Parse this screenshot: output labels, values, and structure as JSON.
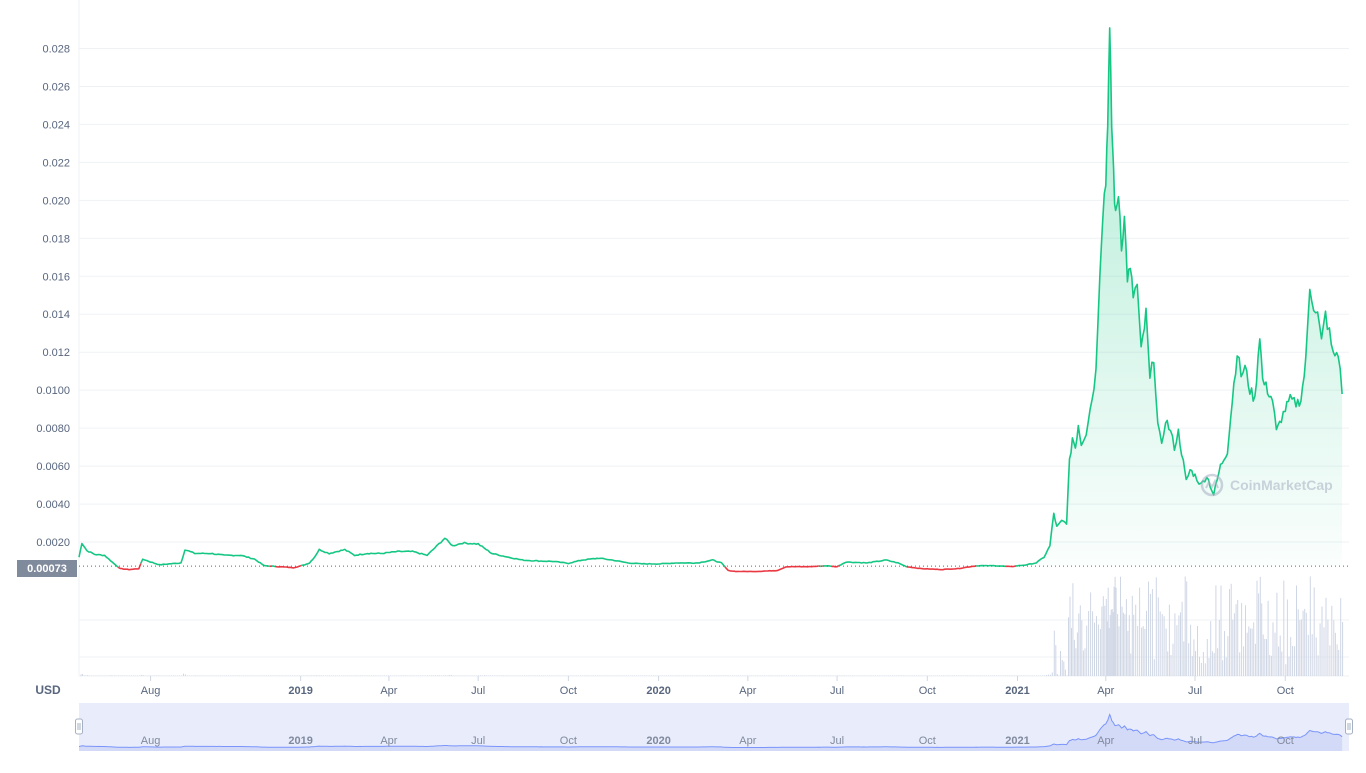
{
  "currency_label": "USD",
  "watermark": "CoinMarketCap",
  "current_price_label": "0.00073",
  "colors": {
    "up": "#16c784",
    "down": "#ea3943",
    "volume": "#cfd6e4",
    "navigator_fill": "#e8ecfb",
    "navigator_line": "#3861fb",
    "reference_line": "#58667e",
    "price_tag_bg": "#808a9d"
  },
  "chart_data": {
    "type": "line",
    "title": "",
    "xlabel": "",
    "ylabel": "USD",
    "grid": true,
    "y_ticks": [
      "0.0020",
      "0.0040",
      "0.0060",
      "0.0080",
      "0.0100",
      "0.012",
      "0.014",
      "0.016",
      "0.018",
      "0.020",
      "0.022",
      "0.024",
      "0.026",
      "0.028"
    ],
    "y_tick_values": [
      0.002,
      0.004,
      0.006,
      0.008,
      0.01,
      0.012,
      0.014,
      0.016,
      0.018,
      0.02,
      0.022,
      0.024,
      0.026,
      0.028
    ],
    "ylim": [
      0.0,
      0.0295
    ],
    "xlim": [
      "2018-05-20",
      "2021-12-05"
    ],
    "x_ticks": [
      {
        "label": "Aug",
        "date": "2018-08-01",
        "bold": false
      },
      {
        "label": "2019",
        "date": "2019-01-01",
        "bold": true
      },
      {
        "label": "Apr",
        "date": "2019-04-01",
        "bold": false
      },
      {
        "label": "Jul",
        "date": "2019-07-01",
        "bold": false
      },
      {
        "label": "Oct",
        "date": "2019-10-01",
        "bold": false
      },
      {
        "label": "2020",
        "date": "2020-01-01",
        "bold": true
      },
      {
        "label": "Apr",
        "date": "2020-04-01",
        "bold": false
      },
      {
        "label": "Jul",
        "date": "2020-07-01",
        "bold": false
      },
      {
        "label": "Oct",
        "date": "2020-10-01",
        "bold": false
      },
      {
        "label": "2021",
        "date": "2021-01-01",
        "bold": true
      },
      {
        "label": "Apr",
        "date": "2021-04-01",
        "bold": false
      },
      {
        "label": "Jul",
        "date": "2021-07-01",
        "bold": false
      },
      {
        "label": "Oct",
        "date": "2021-10-01",
        "bold": false
      }
    ],
    "reference_value": 0.00073,
    "series": [
      {
        "points": [
          [
            "2018-05-20",
            0.0012
          ],
          [
            "2018-05-23",
            0.00195
          ],
          [
            "2018-05-28",
            0.00155
          ],
          [
            "2018-06-05",
            0.00135
          ],
          [
            "2018-06-15",
            0.0013
          ],
          [
            "2018-06-25",
            0.00085
          ],
          [
            "2018-07-01",
            0.0006
          ],
          [
            "2018-07-10",
            0.00055
          ],
          [
            "2018-07-20",
            0.0006
          ],
          [
            "2018-07-24",
            0.0011
          ],
          [
            "2018-08-01",
            0.00095
          ],
          [
            "2018-08-10",
            0.0008
          ],
          [
            "2018-08-20",
            0.00085
          ],
          [
            "2018-09-01",
            0.0009
          ],
          [
            "2018-09-05",
            0.0016
          ],
          [
            "2018-09-15",
            0.0014
          ],
          [
            "2018-10-01",
            0.0014
          ],
          [
            "2018-10-15",
            0.0013
          ],
          [
            "2018-11-01",
            0.0013
          ],
          [
            "2018-11-15",
            0.0011
          ],
          [
            "2018-11-25",
            0.00075
          ],
          [
            "2018-12-10",
            0.0007
          ],
          [
            "2018-12-25",
            0.00065
          ],
          [
            "2019-01-05",
            0.0008
          ],
          [
            "2019-01-10",
            0.0009
          ],
          [
            "2019-01-15",
            0.0012
          ],
          [
            "2019-01-20",
            0.0016
          ],
          [
            "2019-01-30",
            0.0014
          ],
          [
            "2019-02-15",
            0.0016
          ],
          [
            "2019-02-25",
            0.0013
          ],
          [
            "2019-03-10",
            0.0014
          ],
          [
            "2019-03-25",
            0.0014
          ],
          [
            "2019-04-10",
            0.0015
          ],
          [
            "2019-04-25",
            0.0015
          ],
          [
            "2019-05-10",
            0.0013
          ],
          [
            "2019-05-20",
            0.0018
          ],
          [
            "2019-05-28",
            0.0022
          ],
          [
            "2019-06-05",
            0.0018
          ],
          [
            "2019-06-15",
            0.00195
          ],
          [
            "2019-07-01",
            0.0019
          ],
          [
            "2019-07-15",
            0.0014
          ],
          [
            "2019-08-01",
            0.0012
          ],
          [
            "2019-08-15",
            0.00105
          ],
          [
            "2019-09-01",
            0.001
          ],
          [
            "2019-09-15",
            0.00098
          ],
          [
            "2019-10-01",
            0.00088
          ],
          [
            "2019-10-15",
            0.00105
          ],
          [
            "2019-11-01",
            0.00115
          ],
          [
            "2019-11-15",
            0.00105
          ],
          [
            "2019-12-01",
            0.0009
          ],
          [
            "2019-12-15",
            0.00085
          ],
          [
            "2020-01-01",
            0.00085
          ],
          [
            "2020-01-20",
            0.0009
          ],
          [
            "2020-02-10",
            0.0009
          ],
          [
            "2020-02-25",
            0.00105
          ],
          [
            "2020-03-05",
            0.0009
          ],
          [
            "2020-03-12",
            0.0005
          ],
          [
            "2020-03-20",
            0.00045
          ],
          [
            "2020-04-10",
            0.00045
          ],
          [
            "2020-05-01",
            0.0005
          ],
          [
            "2020-05-10",
            0.0007
          ],
          [
            "2020-06-01",
            0.0007
          ],
          [
            "2020-06-20",
            0.00075
          ],
          [
            "2020-07-01",
            0.0007
          ],
          [
            "2020-07-10",
            0.00095
          ],
          [
            "2020-08-01",
            0.0009
          ],
          [
            "2020-08-20",
            0.00105
          ],
          [
            "2020-09-01",
            0.0009
          ],
          [
            "2020-09-10",
            0.0007
          ],
          [
            "2020-09-25",
            0.0006
          ],
          [
            "2020-10-15",
            0.00055
          ],
          [
            "2020-11-01",
            0.0006
          ],
          [
            "2020-11-20",
            0.00075
          ],
          [
            "2020-12-10",
            0.00075
          ],
          [
            "2020-12-25",
            0.0007
          ],
          [
            "2021-01-01",
            0.00075
          ],
          [
            "2021-01-10",
            0.0008
          ],
          [
            "2021-01-20",
            0.0009
          ],
          [
            "2021-01-28",
            0.0012
          ],
          [
            "2021-02-03",
            0.0018
          ],
          [
            "2021-02-07",
            0.0035
          ],
          [
            "2021-02-10",
            0.0028
          ],
          [
            "2021-02-15",
            0.0031
          ],
          [
            "2021-02-20",
            0.003
          ],
          [
            "2021-02-23",
            0.0062
          ],
          [
            "2021-02-26",
            0.0075
          ],
          [
            "2021-03-01",
            0.007
          ],
          [
            "2021-03-04",
            0.0082
          ],
          [
            "2021-03-07",
            0.0072
          ],
          [
            "2021-03-12",
            0.0078
          ],
          [
            "2021-03-18",
            0.0096
          ],
          [
            "2021-03-22",
            0.011
          ],
          [
            "2021-03-26",
            0.0165
          ],
          [
            "2021-03-29",
            0.0195
          ],
          [
            "2021-04-01",
            0.021
          ],
          [
            "2021-04-03",
            0.0245
          ],
          [
            "2021-04-05",
            0.0285
          ],
          [
            "2021-04-07",
            0.024
          ],
          [
            "2021-04-09",
            0.0215
          ],
          [
            "2021-04-11",
            0.019
          ],
          [
            "2021-04-14",
            0.0205
          ],
          [
            "2021-04-17",
            0.0178
          ],
          [
            "2021-04-20",
            0.019
          ],
          [
            "2021-04-23",
            0.016
          ],
          [
            "2021-04-26",
            0.0162
          ],
          [
            "2021-04-29",
            0.015
          ],
          [
            "2021-05-03",
            0.0155
          ],
          [
            "2021-05-07",
            0.012
          ],
          [
            "2021-05-12",
            0.014
          ],
          [
            "2021-05-16",
            0.0105
          ],
          [
            "2021-05-20",
            0.0118
          ],
          [
            "2021-05-24",
            0.0082
          ],
          [
            "2021-05-28",
            0.007
          ],
          [
            "2021-06-01",
            0.0085
          ],
          [
            "2021-06-06",
            0.0078
          ],
          [
            "2021-06-10",
            0.007
          ],
          [
            "2021-06-14",
            0.0078
          ],
          [
            "2021-06-19",
            0.0062
          ],
          [
            "2021-06-22",
            0.0052
          ],
          [
            "2021-06-26",
            0.0058
          ],
          [
            "2021-07-01",
            0.0055
          ],
          [
            "2021-07-07",
            0.005
          ],
          [
            "2021-07-13",
            0.0055
          ],
          [
            "2021-07-20",
            0.0045
          ],
          [
            "2021-07-27",
            0.006
          ],
          [
            "2021-08-03",
            0.0068
          ],
          [
            "2021-08-08",
            0.0095
          ],
          [
            "2021-08-13",
            0.012
          ],
          [
            "2021-08-17",
            0.0108
          ],
          [
            "2021-08-21",
            0.0112
          ],
          [
            "2021-08-26",
            0.01
          ],
          [
            "2021-08-31",
            0.0095
          ],
          [
            "2021-09-05",
            0.013
          ],
          [
            "2021-09-08",
            0.0105
          ],
          [
            "2021-09-13",
            0.01
          ],
          [
            "2021-09-18",
            0.0095
          ],
          [
            "2021-09-22",
            0.0078
          ],
          [
            "2021-09-27",
            0.0085
          ],
          [
            "2021-10-01",
            0.009
          ],
          [
            "2021-10-06",
            0.0095
          ],
          [
            "2021-10-12",
            0.0093
          ],
          [
            "2021-10-17",
            0.0095
          ],
          [
            "2021-10-22",
            0.0115
          ],
          [
            "2021-10-26",
            0.0155
          ],
          [
            "2021-10-30",
            0.0145
          ],
          [
            "2021-11-03",
            0.014
          ],
          [
            "2021-11-07",
            0.0125
          ],
          [
            "2021-11-11",
            0.014
          ],
          [
            "2021-11-15",
            0.013
          ],
          [
            "2021-11-19",
            0.0118
          ],
          [
            "2021-11-24",
            0.012
          ],
          [
            "2021-11-28",
            0.0098
          ]
        ]
      }
    ],
    "volume_shown": true
  }
}
